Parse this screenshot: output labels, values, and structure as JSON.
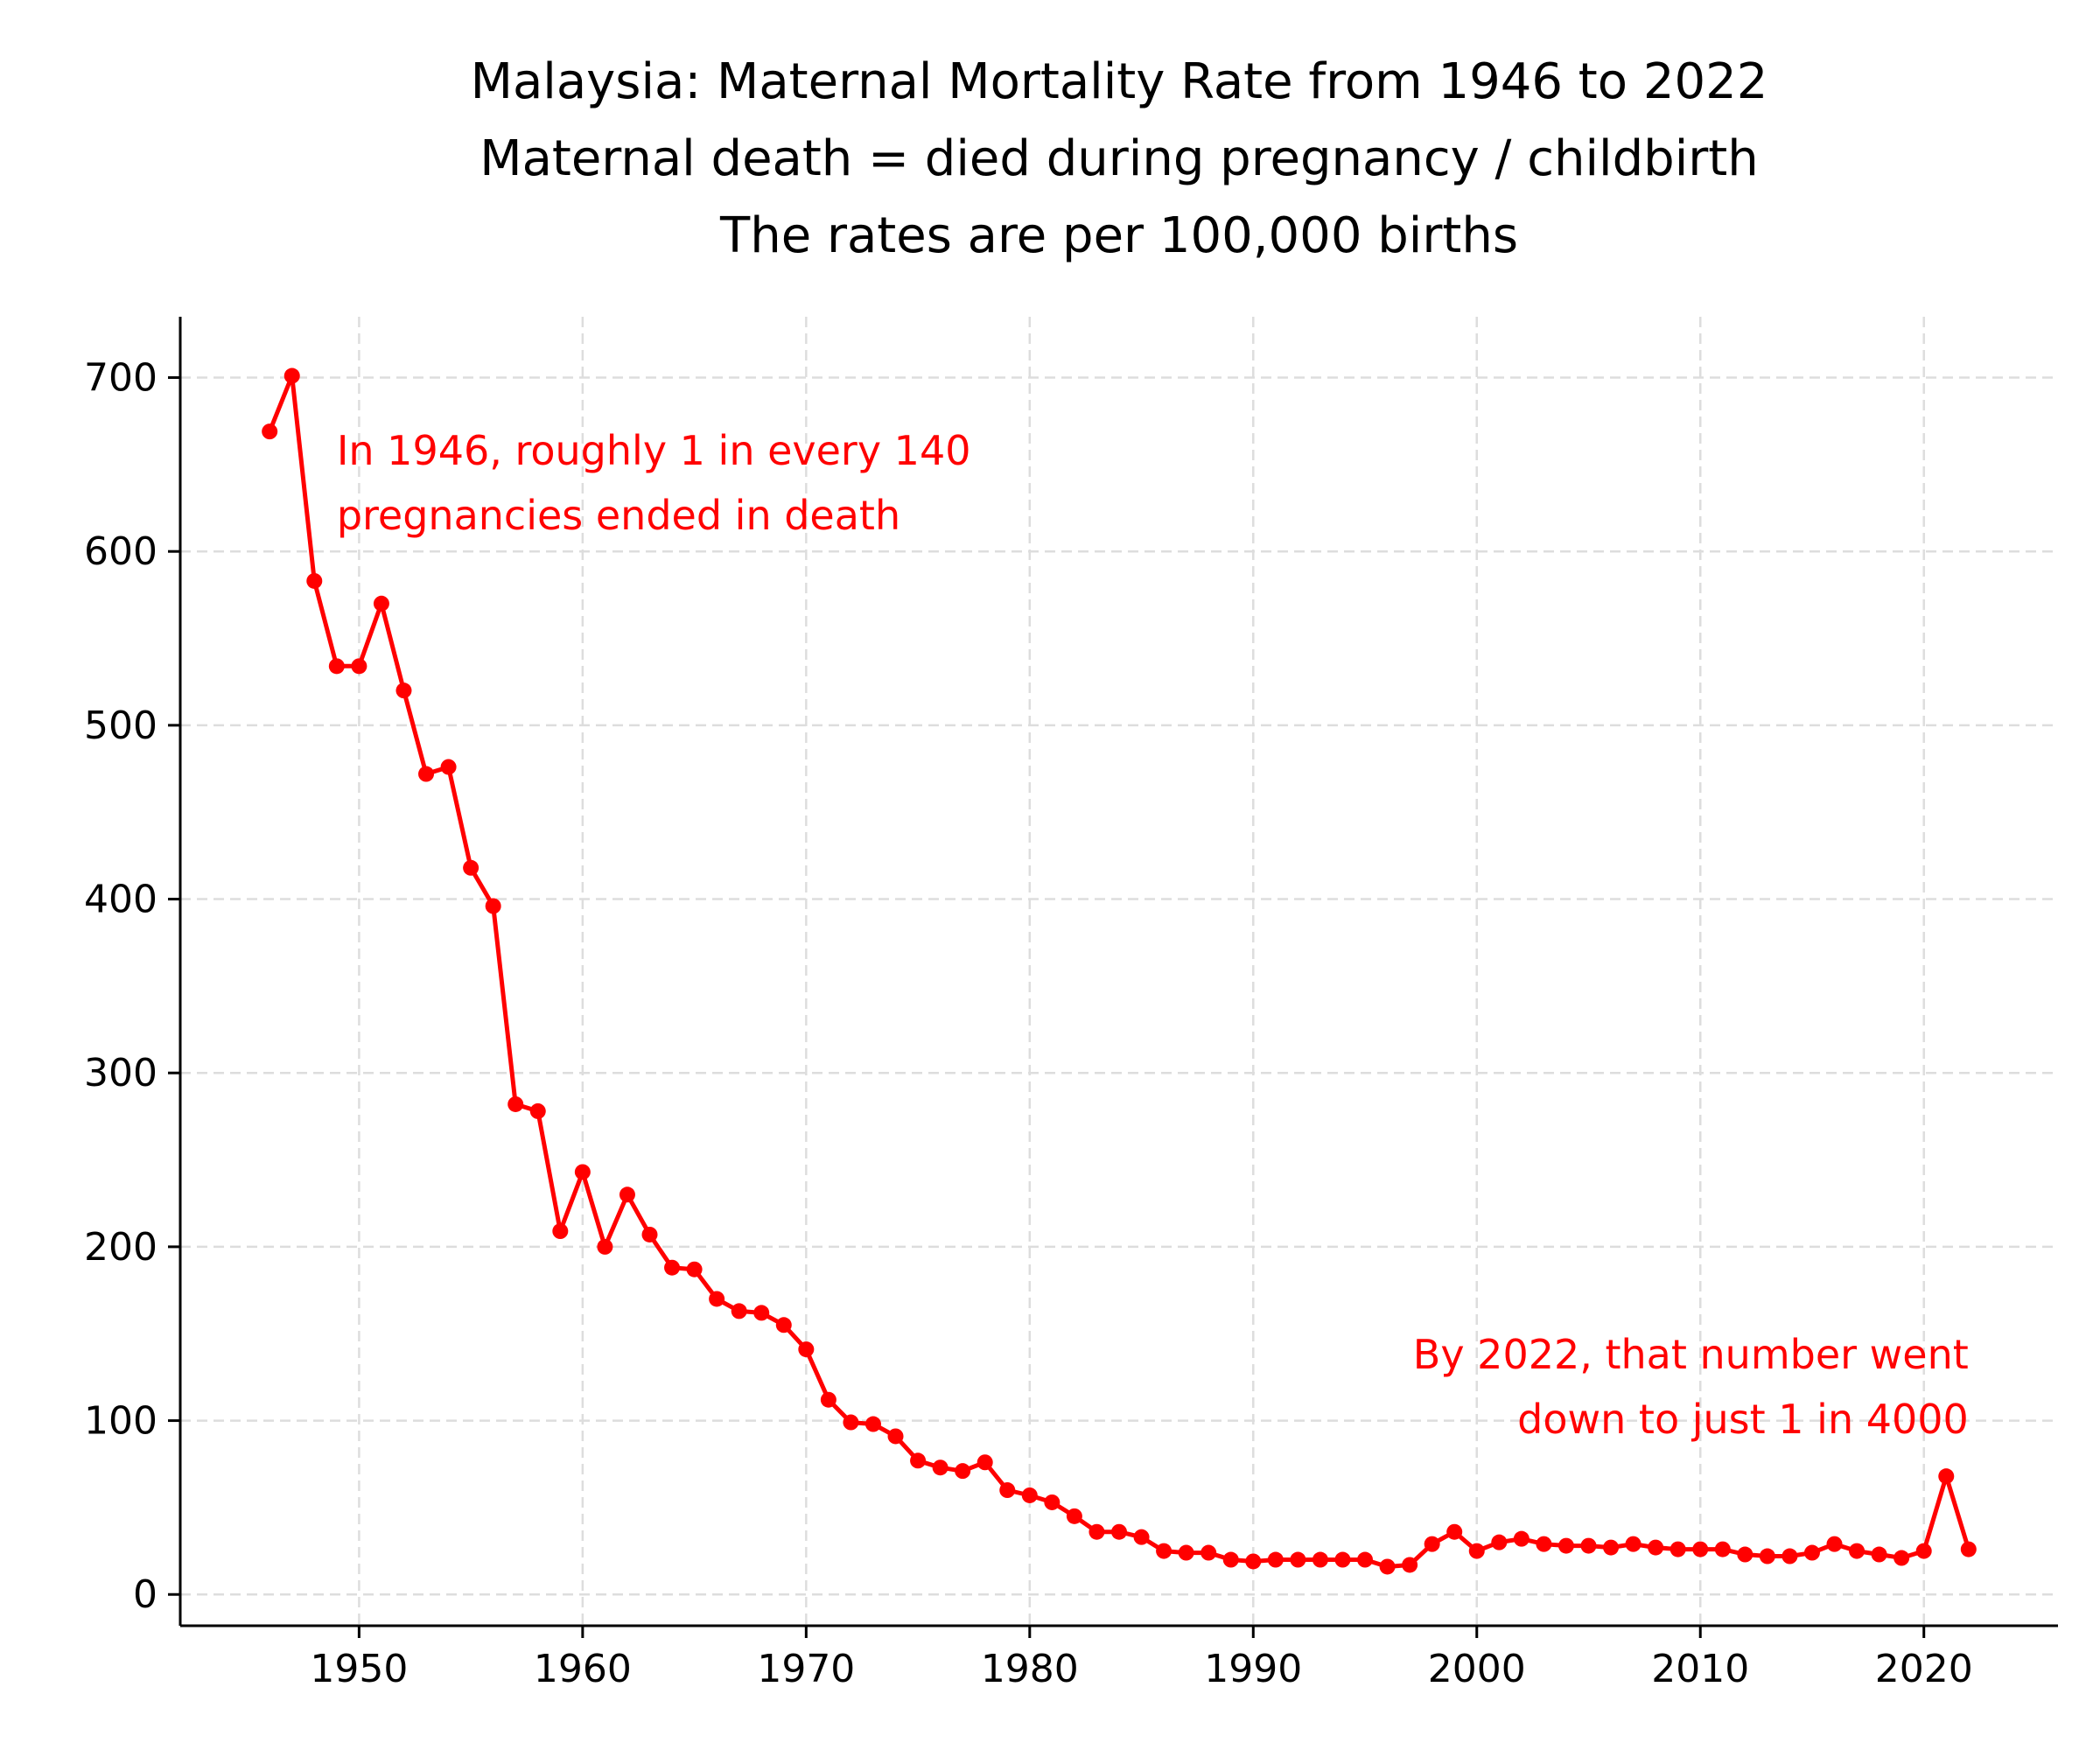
{
  "chart_data": {
    "type": "line",
    "title_lines": [
      "Malaysia: Maternal Mortality Rate from 1946 to 2022",
      "Maternal death = died during pregnancy / childbirth",
      "The rates are per 100,000 births"
    ],
    "xlabel": "",
    "ylabel": "",
    "xlim": [
      1942,
      2026
    ],
    "ylim": [
      -18,
      735
    ],
    "x_ticks": [
      1950,
      1960,
      1970,
      1980,
      1990,
      2000,
      2010,
      2020
    ],
    "y_ticks": [
      0,
      100,
      200,
      300,
      400,
      500,
      600,
      700
    ],
    "grid": true,
    "line_color": "#ff0000",
    "series": [
      {
        "x": [
          1946,
          1947,
          1948,
          1949,
          1950,
          1951,
          1952,
          1953,
          1954,
          1955,
          1956,
          1957,
          1958,
          1959,
          1960,
          1961,
          1962,
          1963,
          1964,
          1965,
          1966,
          1967,
          1968,
          1969,
          1970,
          1971,
          1972,
          1973,
          1974,
          1975,
          1976,
          1977,
          1978,
          1979,
          1980,
          1981,
          1982,
          1983,
          1984,
          1985,
          1986,
          1987,
          1988,
          1989,
          1990,
          1991,
          1992,
          1993,
          1994,
          1995,
          1996,
          1997,
          1998,
          1999,
          2000,
          2001,
          2002,
          2003,
          2004,
          2005,
          2006,
          2007,
          2008,
          2009,
          2010,
          2011,
          2012,
          2013,
          2014,
          2015,
          2016,
          2017,
          2018,
          2019,
          2020,
          2021,
          2022
        ],
        "values": [
          669,
          701,
          583,
          534,
          534,
          570,
          520,
          472,
          476,
          418,
          396,
          282,
          278,
          209,
          243,
          200,
          230,
          207,
          188,
          187,
          170,
          163,
          162,
          155,
          141,
          112,
          99,
          98,
          91,
          77,
          73,
          71,
          76,
          60,
          57,
          53,
          45,
          36,
          36,
          33,
          25,
          24,
          24,
          20,
          19,
          20,
          20,
          20,
          20,
          20,
          16,
          17,
          29,
          36,
          25,
          30,
          32,
          29,
          28,
          28,
          27,
          29,
          27,
          26,
          26,
          26,
          23,
          22,
          22,
          24,
          29,
          25,
          23,
          21,
          25,
          68,
          26
        ]
      }
    ],
    "annotations": [
      {
        "lines": [
          "In 1946, roughly 1 in every 140",
          "pregnancies ended in death"
        ],
        "x": 1949,
        "y": 650,
        "align": "left",
        "color": "#ff0000"
      },
      {
        "lines": [
          "By 2022, that number went",
          "down to just 1 in 4000"
        ],
        "x": 2022,
        "y": 130,
        "align": "right",
        "color": "#ff0000"
      }
    ]
  }
}
